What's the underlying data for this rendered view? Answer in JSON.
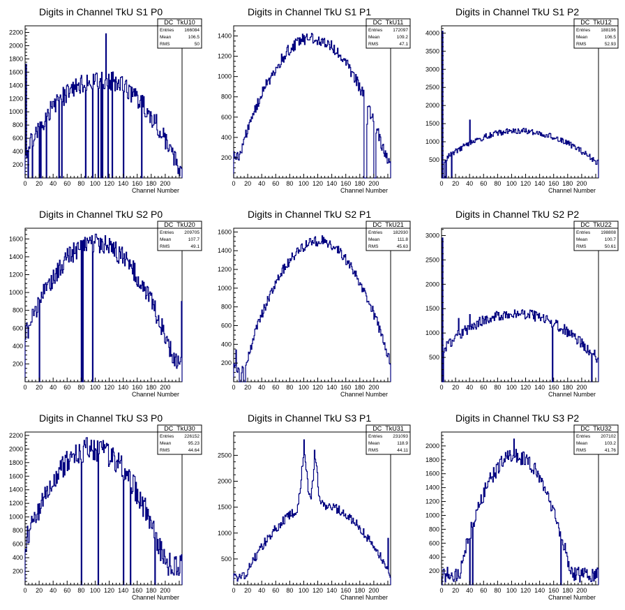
{
  "chart_data": [
    {
      "type": "histogram",
      "name": "DC_TkU10",
      "title": "Digits in Channel TkU S1 P0",
      "xlabel": "Channel Number",
      "xlim": [
        0,
        224
      ],
      "ylim": [
        0,
        2300
      ],
      "xticks": [
        0,
        20,
        40,
        60,
        80,
        100,
        120,
        140,
        160,
        180,
        200
      ],
      "yticks": [
        200,
        400,
        600,
        800,
        1000,
        1200,
        1400,
        1600,
        1800,
        2000,
        2200
      ],
      "stats": {
        "Entries": "166084",
        "Mean": "106.5",
        "RMS": "50"
      },
      "shape": "s1p0"
    },
    {
      "type": "histogram",
      "name": "DC_TkU11",
      "title": "Digits in Channel TkU S1 P1",
      "xlabel": "Channel Number",
      "xlim": [
        0,
        224
      ],
      "ylim": [
        0,
        1500
      ],
      "xticks": [
        0,
        20,
        40,
        60,
        80,
        100,
        120,
        140,
        160,
        180,
        200
      ],
      "yticks": [
        200,
        400,
        600,
        800,
        1000,
        1200,
        1400
      ],
      "stats": {
        "Entries": "172097",
        "Mean": "109.2",
        "RMS": "47.1"
      },
      "shape": "s1p1"
    },
    {
      "type": "histogram",
      "name": "DC_TkU12",
      "title": "Digits in Channel TkU S1 P2",
      "xlabel": "Channel Number",
      "xlim": [
        0,
        224
      ],
      "ylim": [
        0,
        4200
      ],
      "xticks": [
        0,
        20,
        40,
        60,
        80,
        100,
        120,
        140,
        160,
        180,
        200
      ],
      "yticks": [
        500,
        1000,
        1500,
        2000,
        2500,
        3000,
        3500,
        4000
      ],
      "stats": {
        "Entries": "188196",
        "Mean": "106.5",
        "RMS": "52.93"
      },
      "shape": "s1p2"
    },
    {
      "type": "histogram",
      "name": "DC_TkU20",
      "title": "Digits in Channel TkU S2 P0",
      "xlabel": "Channel Number",
      "xlim": [
        0,
        224
      ],
      "ylim": [
        0,
        1720
      ],
      "xticks": [
        0,
        20,
        40,
        60,
        80,
        100,
        120,
        140,
        160,
        180,
        200
      ],
      "yticks": [
        200,
        400,
        600,
        800,
        1000,
        1200,
        1400,
        1600
      ],
      "stats": {
        "Entries": "209705",
        "Mean": "107.7",
        "RMS": "49.1"
      },
      "shape": "s2p0"
    },
    {
      "type": "histogram",
      "name": "DC_TkU21",
      "title": "Digits in Channel TkU S2 P1",
      "xlabel": "Channel Number",
      "xlim": [
        0,
        224
      ],
      "ylim": [
        0,
        1640
      ],
      "xticks": [
        0,
        20,
        40,
        60,
        80,
        100,
        120,
        140,
        160,
        180,
        200
      ],
      "yticks": [
        200,
        400,
        600,
        800,
        1000,
        1200,
        1400,
        1600
      ],
      "stats": {
        "Entries": "182930",
        "Mean": "111.8",
        "RMS": "45.63"
      },
      "shape": "s2p1"
    },
    {
      "type": "histogram",
      "name": "DC_TkU22",
      "title": "Digits in Channel TkU S2 P2",
      "xlabel": "Channel Number",
      "xlim": [
        0,
        224
      ],
      "ylim": [
        0,
        3150
      ],
      "xticks": [
        0,
        20,
        40,
        60,
        80,
        100,
        120,
        140,
        160,
        180,
        200
      ],
      "yticks": [
        500,
        1000,
        1500,
        2000,
        2500,
        3000
      ],
      "stats": {
        "Entries": "198808",
        "Mean": "100.7",
        "RMS": "50.61"
      },
      "shape": "s2p2"
    },
    {
      "type": "histogram",
      "name": "DC_TkU30",
      "title": "Digits in Channel TkU S3 P0",
      "xlabel": "Channel Number",
      "xlim": [
        0,
        224
      ],
      "ylim": [
        0,
        2250
      ],
      "xticks": [
        0,
        20,
        40,
        60,
        80,
        100,
        120,
        140,
        160,
        180,
        200
      ],
      "yticks": [
        200,
        400,
        600,
        800,
        1000,
        1200,
        1400,
        1600,
        1800,
        2000,
        2200
      ],
      "stats": {
        "Entries": "226152",
        "Mean": "95.23",
        "RMS": "44.64"
      },
      "shape": "s3p0"
    },
    {
      "type": "histogram",
      "name": "DC_TkU31",
      "title": "Digits in Channel TkU S3 P1",
      "xlabel": "Channel Number",
      "xlim": [
        0,
        224
      ],
      "ylim": [
        0,
        2950
      ],
      "xticks": [
        0,
        20,
        40,
        60,
        80,
        100,
        120,
        140,
        160,
        180,
        200
      ],
      "yticks": [
        500,
        1000,
        1500,
        2000,
        2500
      ],
      "stats": {
        "Entries": "231093",
        "Mean": "118.9",
        "RMS": "44.11"
      },
      "shape": "s3p1"
    },
    {
      "type": "histogram",
      "name": "DC_TkU32",
      "title": "Digits in Channel TkU S3 P2",
      "xlabel": "Channel Number",
      "xlim": [
        0,
        224
      ],
      "ylim": [
        0,
        2200
      ],
      "xticks": [
        0,
        20,
        40,
        60,
        80,
        100,
        120,
        140,
        160,
        180,
        200
      ],
      "yticks": [
        200,
        400,
        600,
        800,
        1000,
        1200,
        1400,
        1600,
        1800,
        2000
      ],
      "stats": {
        "Entries": "207102",
        "Mean": "103.2",
        "RMS": "41.76"
      },
      "shape": "s3p2"
    }
  ],
  "colors": {
    "line": "#000080",
    "axis": "#000000",
    "background": "#ffffff"
  }
}
